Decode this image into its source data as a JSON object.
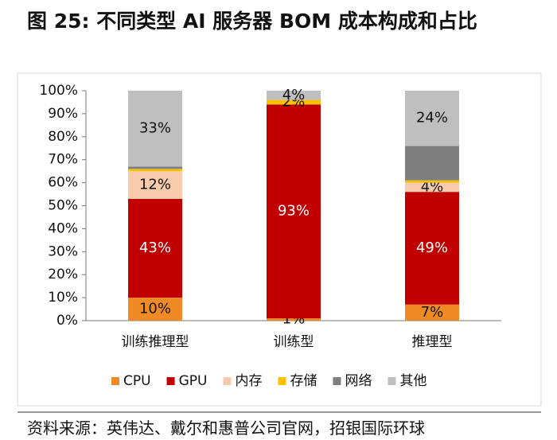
{
  "chart_data": {
    "type": "stacked_bar",
    "title": "图 25: 不同类型 AI 服务器 BOM 成本构成和占比",
    "source": "资料来源：英伟达、戴尔和惠普公司官网，招银国际环球",
    "categories": [
      "训练推理型",
      "训练型",
      "推理型"
    ],
    "series": [
      {
        "name": "CPU",
        "color": "#f08a24",
        "values": [
          10,
          1,
          7
        ],
        "value_labels": [
          "10%",
          "1%",
          "7%"
        ]
      },
      {
        "name": "GPU",
        "color": "#c00000",
        "values": [
          43,
          93,
          49
        ],
        "value_labels": [
          "43%",
          "93%",
          "49%"
        ]
      },
      {
        "name": "内存",
        "color": "#f8cbad",
        "values": [
          12,
          0,
          4
        ],
        "value_labels": [
          "12%",
          null,
          "4%"
        ]
      },
      {
        "name": "存储",
        "color": "#ffc000",
        "values": [
          1,
          2,
          1
        ],
        "value_labels": [
          null,
          "2%",
          null
        ]
      },
      {
        "name": "网络",
        "color": "#7f7f7f",
        "values": [
          1,
          0,
          15
        ],
        "value_labels": [
          null,
          null,
          null
        ]
      },
      {
        "name": "其他",
        "color": "#bfbfbf",
        "values": [
          33,
          4,
          24
        ],
        "value_labels": [
          "33%",
          "4%",
          "24%"
        ]
      }
    ],
    "ylim": [
      0,
      100
    ],
    "yticks": [
      {
        "value": 0,
        "label": "0%"
      },
      {
        "value": 10,
        "label": "10%"
      },
      {
        "value": 20,
        "label": "20%"
      },
      {
        "value": 30,
        "label": "30%"
      },
      {
        "value": 40,
        "label": "40%"
      },
      {
        "value": 50,
        "label": "50%"
      },
      {
        "value": 60,
        "label": "60%"
      },
      {
        "value": 70,
        "label": "70%"
      },
      {
        "value": 80,
        "label": "80%"
      },
      {
        "value": 90,
        "label": "90%"
      },
      {
        "value": 100,
        "label": "100%"
      }
    ],
    "grid": false,
    "legend": "bottom"
  }
}
